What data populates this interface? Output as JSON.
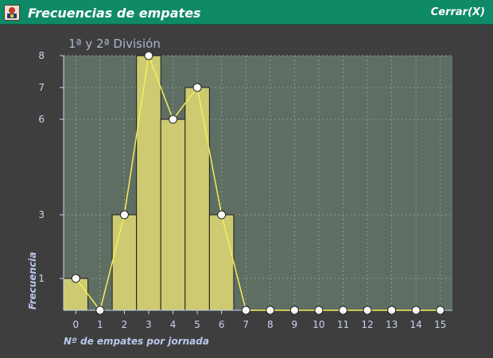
{
  "window": {
    "title": "Frecuencias de empates",
    "close_label": "Cerrar(X)",
    "icon": "app-logo-icon"
  },
  "colors": {
    "titlebar": "#0f8a67",
    "background": "#3f3e3f",
    "plot_area": "#5e6e63",
    "bar_fill": "#cdca72",
    "line": "#f5ed5a",
    "marker": "#ffffff",
    "grid": "#8a9a8e"
  },
  "chart_data": {
    "type": "bar",
    "title": "1ª y 2ª División",
    "xlabel": "Nº de empates por jornada",
    "ylabel": "Frecuencia",
    "x": [
      0,
      1,
      2,
      3,
      4,
      5,
      6,
      7,
      8,
      9,
      10,
      11,
      12,
      13,
      14,
      15
    ],
    "values": [
      1,
      0,
      3,
      8,
      6,
      7,
      3,
      0,
      0,
      0,
      0,
      0,
      0,
      0,
      0,
      0
    ],
    "bars": [
      {
        "x": 0,
        "value": 1
      },
      {
        "x": 2,
        "value": 3
      },
      {
        "x": 3,
        "value": 8
      },
      {
        "x": 4,
        "value": 6
      },
      {
        "x": 5,
        "value": 7
      },
      {
        "x": 6,
        "value": 3
      }
    ],
    "overlay": "line-with-markers",
    "yticks": [
      1,
      3,
      6,
      7,
      8
    ],
    "xticks": [
      0,
      1,
      2,
      3,
      4,
      5,
      6,
      7,
      8,
      9,
      10,
      11,
      12,
      13,
      14,
      15
    ],
    "ylim": [
      0,
      8
    ],
    "xlim": [
      -0.5,
      15.5
    ],
    "grid": true,
    "legend": "none"
  }
}
